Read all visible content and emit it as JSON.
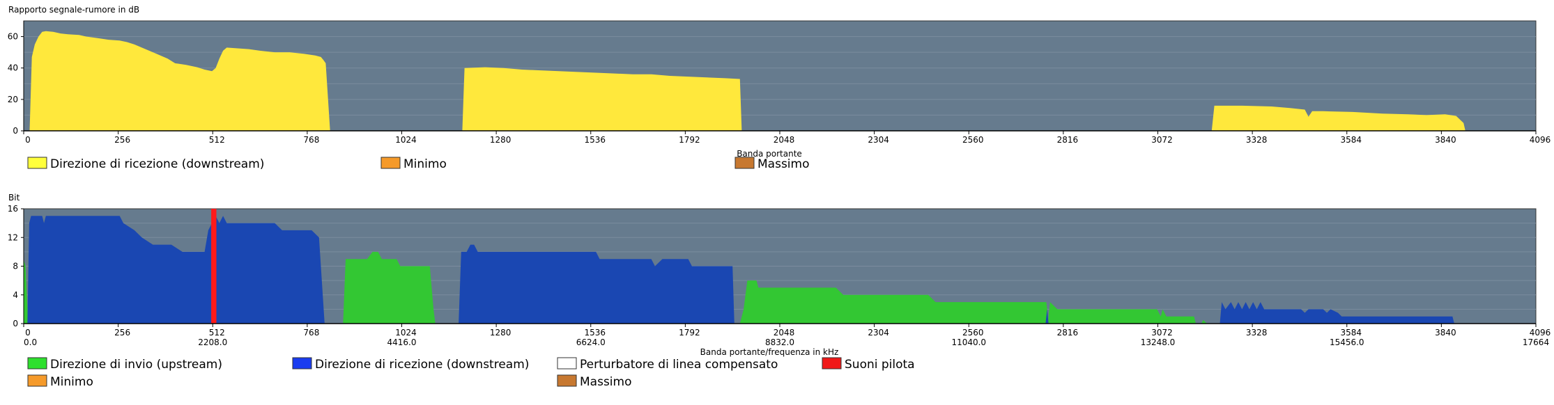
{
  "chart_data": [
    {
      "type": "area",
      "title": "Rapporto segnale-rumore in dB",
      "xlabel": "Banda portante",
      "ylabel": "",
      "xlim": [
        0,
        4096
      ],
      "ylim": [
        0,
        70
      ],
      "x_ticks": [
        0,
        256,
        512,
        768,
        1024,
        1280,
        1536,
        1792,
        2048,
        2304,
        2560,
        2816,
        3072,
        3328,
        3584,
        3840,
        4096
      ],
      "y_ticks": [
        0,
        20,
        40,
        60
      ],
      "legend": [
        {
          "label": "Direzione di ricezione (downstream)",
          "color": "#ffff3c"
        },
        {
          "label": "Minimo",
          "color": "#f59a2a"
        },
        {
          "label": "Massimo",
          "color": "#c77830"
        }
      ],
      "series": [
        {
          "name": "Direzione di ricezione (downstream)",
          "color": "#ffe83c",
          "segments": [
            [
              [
                16,
                0
              ],
              [
                22,
                47
              ],
              [
                30,
                55
              ],
              [
                40,
                60
              ],
              [
                50,
                63
              ],
              [
                60,
                63.5
              ],
              [
                80,
                63
              ],
              [
                100,
                62
              ],
              [
                120,
                61.5
              ],
              [
                150,
                61
              ],
              [
                170,
                60
              ],
              [
                200,
                59
              ],
              [
                230,
                58
              ],
              [
                260,
                57.5
              ],
              [
                280,
                56.5
              ],
              [
                300,
                55
              ],
              [
                330,
                52
              ],
              [
                360,
                49
              ],
              [
                390,
                46
              ],
              [
                410,
                43
              ],
              [
                440,
                42
              ],
              [
                470,
                40.5
              ],
              [
                490,
                39
              ],
              [
                510,
                38
              ],
              [
                520,
                40
              ],
              [
                530,
                46
              ],
              [
                540,
                51
              ],
              [
                550,
                53
              ],
              [
                580,
                52.5
              ],
              [
                610,
                52
              ],
              [
                640,
                51
              ],
              [
                680,
                50
              ],
              [
                720,
                50
              ],
              [
                760,
                49
              ],
              [
                790,
                48
              ],
              [
                805,
                47
              ],
              [
                812,
                45
              ],
              [
                818,
                43
              ],
              [
                830,
                0
              ]
            ],
            [
              [
                1188,
                0
              ],
              [
                1194,
                40
              ],
              [
                1250,
                40.5
              ],
              [
                1300,
                40
              ],
              [
                1350,
                39
              ],
              [
                1400,
                38.5
              ],
              [
                1450,
                38
              ],
              [
                1500,
                37.5
              ],
              [
                1550,
                37
              ],
              [
                1600,
                36.5
              ],
              [
                1650,
                36
              ],
              [
                1700,
                36
              ],
              [
                1750,
                35
              ],
              [
                1800,
                34.5
              ],
              [
                1850,
                34
              ],
              [
                1900,
                33.5
              ],
              [
                1940,
                33
              ],
              [
                1945,
                0
              ]
            ],
            [
              [
                3218,
                0
              ],
              [
                3225,
                16
              ],
              [
                3300,
                16
              ],
              [
                3380,
                15.5
              ],
              [
                3430,
                14.5
              ],
              [
                3470,
                13.5
              ],
              [
                3480,
                9
              ],
              [
                3490,
                12.5
              ],
              [
                3520,
                12.5
              ],
              [
                3600,
                12
              ],
              [
                3680,
                11
              ],
              [
                3750,
                10.5
              ],
              [
                3800,
                10
              ],
              [
                3850,
                10.5
              ],
              [
                3880,
                9.5
              ],
              [
                3900,
                5
              ],
              [
                3905,
                0
              ]
            ]
          ]
        }
      ]
    },
    {
      "type": "area",
      "title": "",
      "xlabel": "Banda portante/frequenza in kHz",
      "ylabel": "Bit",
      "xlim": [
        0,
        4096
      ],
      "ylim": [
        0,
        16
      ],
      "x_ticks": [
        0,
        256,
        512,
        768,
        1024,
        1280,
        1536,
        1792,
        2048,
        2304,
        2560,
        2816,
        3072,
        3328,
        3584,
        3840,
        4096
      ],
      "x_freq_ticks": [
        "0.0",
        "2208.0",
        "4416.0",
        "6624.0",
        "8832.0",
        "11040.0",
        "13248.0",
        "15456.0",
        "17664"
      ],
      "y_ticks": [
        0,
        4,
        8,
        12,
        16
      ],
      "legend": [
        {
          "label": "Direzione di invio (upstream)",
          "color": "#2ee02e"
        },
        {
          "label": "Direzione di ricezione (downstream)",
          "color": "#1a3cf0"
        },
        {
          "label": "Perturbatore di linea compensato",
          "color": "#ffffff"
        },
        {
          "label": "Suoni pilota",
          "color": "#f01818"
        },
        {
          "label": "Minimo",
          "color": "#f59a2a"
        },
        {
          "label": "Massimo",
          "color": "#c77830"
        }
      ],
      "series": [
        {
          "name": "Direzione di invio (upstream)",
          "color": "#33c733",
          "segments": [
            [
              [
                -15,
                0
              ],
              [
                -10,
                8
              ],
              [
                -5,
                10
              ],
              [
                5,
                8
              ],
              [
                12,
                0
              ]
            ],
            [
              [
                865,
                0
              ],
              [
                872,
                9
              ],
              [
                930,
                9
              ],
              [
                945,
                10
              ],
              [
                960,
                10
              ],
              [
                970,
                9
              ],
              [
                1010,
                9
              ],
              [
                1020,
                8
              ],
              [
                1080,
                8
              ],
              [
                1100,
                8
              ],
              [
                1110,
                2
              ],
              [
                1115,
                0
              ]
            ],
            [
              [
                1940,
                0
              ],
              [
                1950,
                2
              ],
              [
                1960,
                6
              ],
              [
                1985,
                6
              ],
              [
                1990,
                5
              ],
              [
                2050,
                5
              ],
              [
                2100,
                5
              ],
              [
                2150,
                5
              ],
              [
                2200,
                5
              ],
              [
                2220,
                4
              ],
              [
                2300,
                4
              ],
              [
                2400,
                4
              ],
              [
                2450,
                4
              ],
              [
                2470,
                3
              ],
              [
                2600,
                3
              ],
              [
                2700,
                3
              ],
              [
                2770,
                3
              ],
              [
                2775,
                0.5
              ],
              [
                2780,
                3
              ],
              [
                2800,
                2
              ],
              [
                2900,
                2
              ],
              [
                3000,
                2
              ],
              [
                3070,
                2
              ],
              [
                3080,
                1
              ],
              [
                3085,
                2
              ],
              [
                3095,
                1
              ],
              [
                3140,
                1
              ],
              [
                3170,
                1
              ],
              [
                3175,
                0
              ]
            ],
            [
              [
                3190,
                0
              ],
              [
                3195,
                0.5
              ],
              [
                3205,
                0
              ]
            ]
          ]
        },
        {
          "name": "Direzione di ricezione (downstream)",
          "color": "#1a47b2",
          "segments": [
            [
              [
                10,
                0
              ],
              [
                15,
                14
              ],
              [
                20,
                15
              ],
              [
                50,
                15
              ],
              [
                55,
                14
              ],
              [
                60,
                15
              ],
              [
                160,
                15
              ],
              [
                260,
                15
              ],
              [
                270,
                14
              ],
              [
                300,
                13
              ],
              [
                320,
                12
              ],
              [
                350,
                11
              ],
              [
                380,
                11
              ],
              [
                400,
                11
              ],
              [
                430,
                10
              ],
              [
                470,
                10
              ],
              [
                490,
                10
              ],
              [
                500,
                13
              ],
              [
                510,
                14
              ],
              [
                520,
                15
              ],
              [
                530,
                14
              ],
              [
                540,
                15
              ],
              [
                550,
                14
              ],
              [
                620,
                14
              ],
              [
                680,
                14
              ],
              [
                700,
                13
              ],
              [
                780,
                13
              ],
              [
                800,
                12
              ],
              [
                815,
                0
              ]
            ],
            [
              [
                1178,
                0
              ],
              [
                1185,
                10
              ],
              [
                1200,
                10
              ],
              [
                1210,
                11
              ],
              [
                1220,
                11
              ],
              [
                1230,
                10
              ],
              [
                1300,
                10
              ],
              [
                1500,
                10
              ],
              [
                1550,
                10
              ],
              [
                1560,
                9
              ],
              [
                1700,
                9
              ],
              [
                1710,
                8
              ],
              [
                1730,
                9
              ],
              [
                1800,
                9
              ],
              [
                1810,
                8
              ],
              [
                1920,
                8
              ],
              [
                1925,
                0
              ]
            ],
            [
              [
                2768,
                0
              ],
              [
                2772,
                2
              ],
              [
                2776,
                0
              ]
            ],
            [
              [
                3240,
                0
              ],
              [
                3245,
                3
              ],
              [
                3255,
                2
              ],
              [
                3270,
                3
              ],
              [
                3280,
                2
              ],
              [
                3290,
                3
              ],
              [
                3300,
                2
              ],
              [
                3310,
                3
              ],
              [
                3320,
                2
              ],
              [
                3330,
                3
              ],
              [
                3340,
                2
              ],
              [
                3350,
                3
              ],
              [
                3360,
                2
              ],
              [
                3370,
                2
              ],
              [
                3380,
                2
              ],
              [
                3460,
                2
              ],
              [
                3470,
                1.5
              ],
              [
                3480,
                2
              ],
              [
                3520,
                2
              ],
              [
                3530,
                1.5
              ],
              [
                3540,
                2
              ],
              [
                3560,
                1.5
              ],
              [
                3570,
                1
              ],
              [
                3870,
                1
              ],
              [
                3875,
                0
              ]
            ]
          ]
        },
        {
          "name": "Suoni pilota",
          "color": "#ff1a1a",
          "segments": [
            [
              [
                508,
                0
              ],
              [
                508,
                16
              ],
              [
                522,
                16
              ],
              [
                522,
                0
              ]
            ]
          ]
        }
      ]
    }
  ]
}
